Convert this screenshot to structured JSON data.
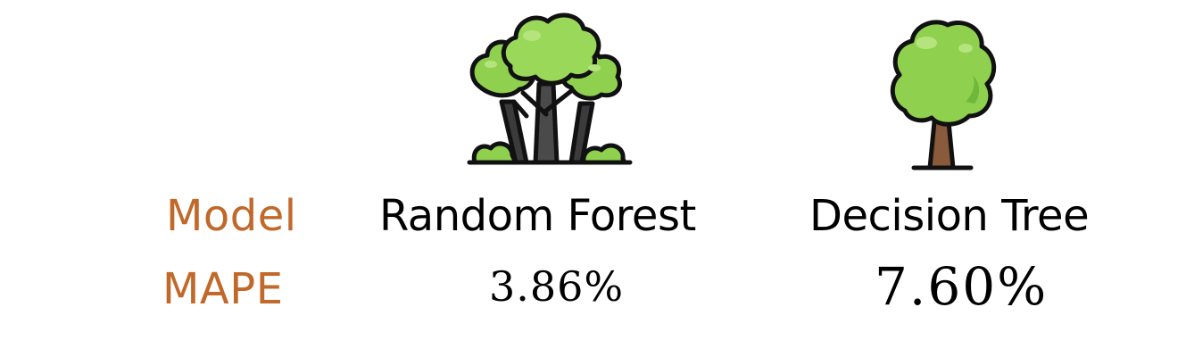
{
  "colors": {
    "accent": "#c0692a",
    "text": "#000000",
    "foliage_light": "#8fd14f",
    "foliage_dark": "#6fb83a",
    "trunk": "#8a5a3c",
    "outline": "#111111"
  },
  "rows": {
    "model_label": "Model",
    "mape_label": "MAPE"
  },
  "models": [
    {
      "name": "Random Forest",
      "mape": "3.86%",
      "icon": "forest-icon"
    },
    {
      "name": "Decision Tree",
      "mape": "7.60%",
      "icon": "tree-icon"
    }
  ]
}
